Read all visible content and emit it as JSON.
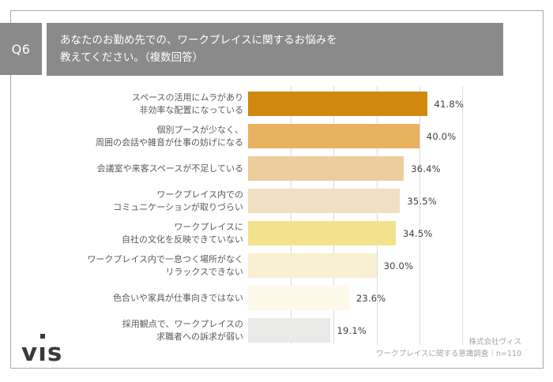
{
  "header": {
    "badge": "Q6",
    "title_line1": "あなたのお勤め先での、ワークプレイスに関するお悩みを",
    "title_line2": "教えてください。（複数回答）"
  },
  "chart_data": {
    "type": "bar",
    "orientation": "horizontal",
    "title": "あなたのお勤め先での、ワークプレイスに関するお悩みを教えてください。（複数回答）",
    "unit": "%",
    "xlim": [
      0,
      50
    ],
    "grid": true,
    "gridlines_percent": [
      10,
      20,
      30,
      40,
      50
    ],
    "categories": [
      [
        "スペースの活用にムラがあり",
        "非効率な配置になっている"
      ],
      [
        "個別ブースが少なく、",
        "周囲の会話や雑音が仕事の妨げになる"
      ],
      [
        "会議室や来客スペースが不足している"
      ],
      [
        "ワークプレイス内での",
        "コミュニケーションが取りづらい"
      ],
      [
        "ワークプレイスに",
        "自社の文化を反映できていない"
      ],
      [
        "ワークプレイス内で一息つく場所がなく",
        "リラックスできない"
      ],
      [
        "色合いや家具が仕事向きではない"
      ],
      [
        "採用観点で、ワークプレイスの",
        "求職者への訴求が弱い"
      ]
    ],
    "values": [
      41.8,
      40.0,
      36.4,
      35.5,
      34.5,
      30.0,
      23.6,
      19.1
    ],
    "value_labels": [
      "41.8%",
      "40.0%",
      "36.4%",
      "35.5%",
      "34.5%",
      "30.0%",
      "23.6%",
      "19.1%"
    ],
    "bar_colors": [
      "#d0880e",
      "#e9b25f",
      "#eccd9b",
      "#f0dfc1",
      "#f3e28c",
      "#f9f0d3",
      "#fdfaeb",
      "#e9e9e7"
    ]
  },
  "footer": {
    "company": "株式会社ヴィス",
    "survey": "ワークプレイスに関する意識調査｜n=110"
  },
  "logo": {
    "text": "vis"
  },
  "colors": {
    "header_gray": "#8a8a8a",
    "gridline": "#dcdcdc",
    "label_text": "#595959",
    "value_text": "#3f3f3f",
    "footer_text": "#a3a3a3"
  }
}
